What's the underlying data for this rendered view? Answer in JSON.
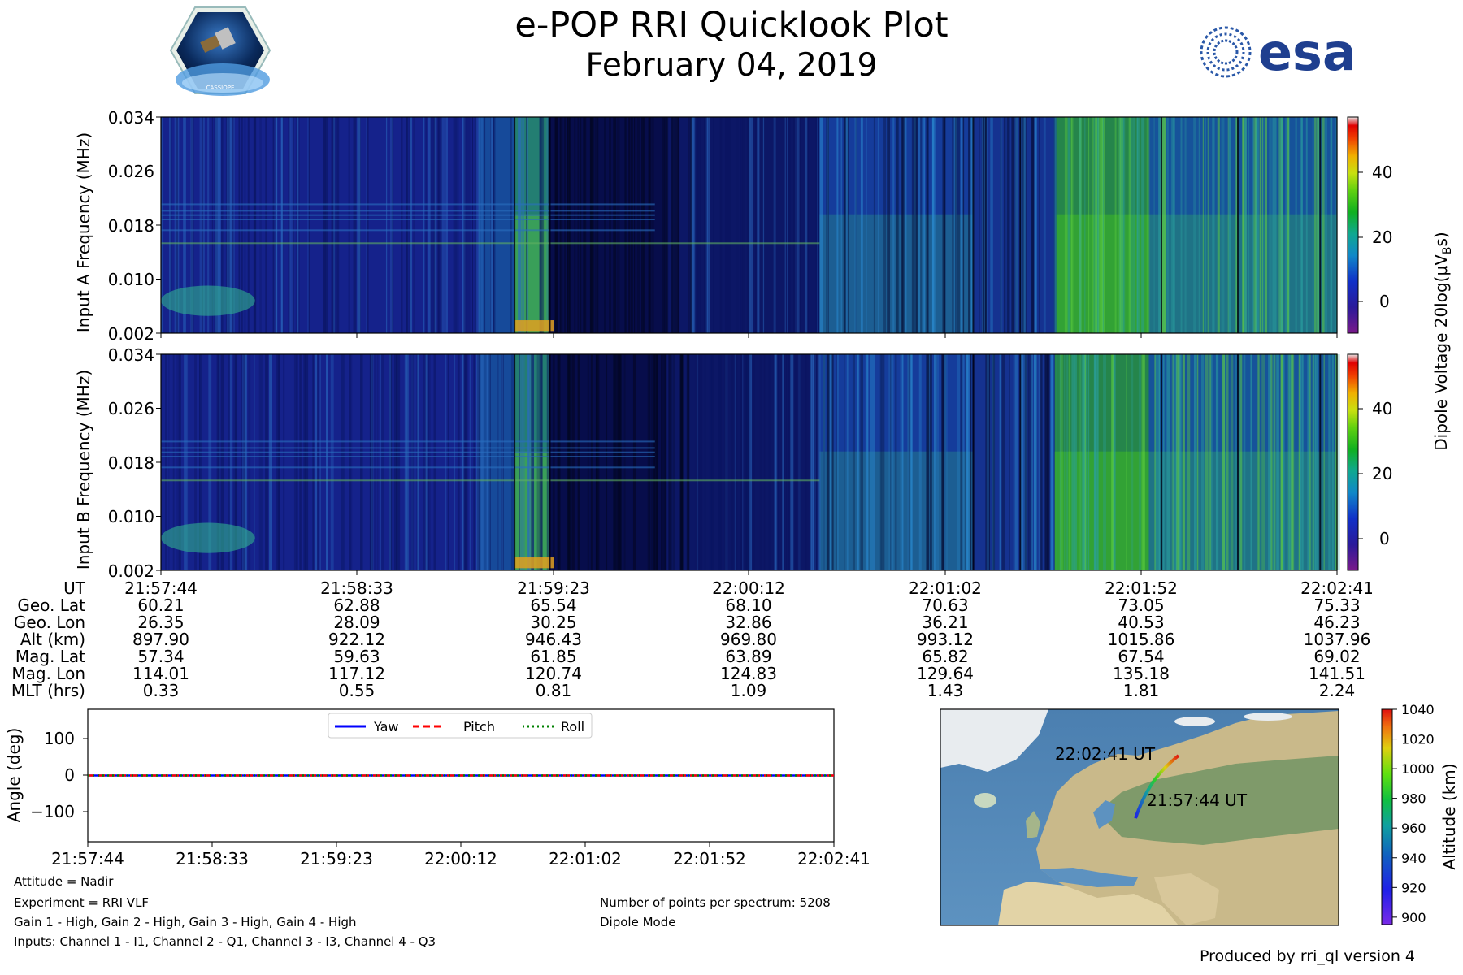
{
  "header": {
    "title": "e-POP RRI Quicklook Plot",
    "date": "February 04, 2019",
    "logo_left_text": "CASSIOPE",
    "logo_right_text": "esa"
  },
  "colors": {
    "yaw": "#0000ff",
    "pitch": "#ff0000",
    "roll": "#008000"
  },
  "chart_data": [
    {
      "type": "heatmap",
      "name": "Input A spectrogram",
      "ylabel": "Input A Frequency (MHz)",
      "yticks": [
        "0.034",
        "0.026",
        "0.018",
        "0.010",
        "0.002"
      ],
      "ylim": [
        0.002,
        0.034
      ],
      "xlim": [
        "21:57:44",
        "22:02:41"
      ]
    },
    {
      "type": "heatmap",
      "name": "Input B spectrogram",
      "ylabel": "Input B Frequency (MHz)",
      "yticks": [
        "0.034",
        "0.026",
        "0.018",
        "0.010",
        "0.002"
      ],
      "ylim": [
        0.002,
        0.034
      ],
      "xlim": [
        "21:57:44",
        "22:02:41"
      ]
    },
    {
      "type": "heatmap",
      "name": "colorbar",
      "label": "Dipole Voltage 20log(μV",
      "label_sub": "B",
      "label_tail": "s)",
      "ticks": [
        "40",
        "20",
        "0"
      ],
      "range": [
        -10,
        57
      ]
    },
    {
      "type": "line",
      "name": "attitude",
      "ylabel": "Angle (deg)",
      "yticks": [
        "100",
        "0",
        "−100"
      ],
      "ylim": [
        -180,
        180
      ],
      "x": [
        "21:57:44",
        "21:58:33",
        "21:59:23",
        "22:00:12",
        "22:01:02",
        "22:01:52",
        "22:02:41"
      ],
      "series": [
        {
          "name": "Yaw",
          "values": [
            0,
            0,
            0,
            0,
            0,
            0,
            0
          ]
        },
        {
          "name": "Pitch",
          "values": [
            0,
            0,
            0,
            0,
            0,
            0,
            0
          ]
        },
        {
          "name": "Roll",
          "values": [
            0,
            0,
            0,
            0,
            0,
            0,
            0
          ]
        }
      ],
      "legend": "top-center"
    },
    {
      "type": "scatter",
      "name": "ground track",
      "label_end": "22:02:41 UT",
      "label_start": "21:57:44 UT",
      "colorbar_label": "Altitude (km)",
      "colorbar_ticks": [
        "1040",
        "1020",
        "1000",
        "980",
        "960",
        "940",
        "920",
        "900"
      ],
      "altitude_range": [
        895,
        1040
      ],
      "track": {
        "lat": [
          60.21,
          62.88,
          65.54,
          68.1,
          70.63,
          73.05,
          75.33
        ],
        "lon": [
          26.35,
          28.09,
          30.25,
          32.86,
          36.21,
          40.53,
          46.23
        ],
        "alt": [
          897.9,
          922.12,
          946.43,
          969.8,
          993.12,
          1015.86,
          1037.96
        ]
      }
    }
  ],
  "ephemeris": {
    "row_labels": [
      "UT",
      "Geo. Lat",
      "Geo. Lon",
      "Alt (km)",
      "Mag. Lat",
      "Mag. Lon",
      "MLT (hrs)"
    ],
    "columns": [
      [
        "21:57:44",
        "60.21",
        "26.35",
        "897.90",
        "57.34",
        "114.01",
        "0.33"
      ],
      [
        "21:58:33",
        "62.88",
        "28.09",
        "922.12",
        "59.63",
        "117.12",
        "0.55"
      ],
      [
        "21:59:23",
        "65.54",
        "30.25",
        "946.43",
        "61.85",
        "120.74",
        "0.81"
      ],
      [
        "22:00:12",
        "68.10",
        "32.86",
        "969.80",
        "63.89",
        "124.83",
        "1.09"
      ],
      [
        "22:01:02",
        "70.63",
        "36.21",
        "993.12",
        "65.82",
        "129.64",
        "1.43"
      ],
      [
        "22:01:52",
        "73.05",
        "40.53",
        "1015.86",
        "67.54",
        "135.18",
        "1.81"
      ],
      [
        "22:02:41",
        "75.33",
        "46.23",
        "1037.96",
        "69.02",
        "141.51",
        "2.24"
      ]
    ]
  },
  "info": {
    "attitude": "Attitude = Nadir",
    "experiment": "Experiment = RRI VLF",
    "gains": "Gain 1 - High, Gain 2 - High, Gain 3 - High, Gain 4 - High",
    "inputs": "Inputs: Channel 1 - I1, Channel 2 - Q1, Channel 3 - I3, Channel 4 - Q3",
    "points": "Number of points per spectrum: 5208",
    "mode": "Dipole Mode",
    "footer": "Produced by rri_ql version 4"
  }
}
